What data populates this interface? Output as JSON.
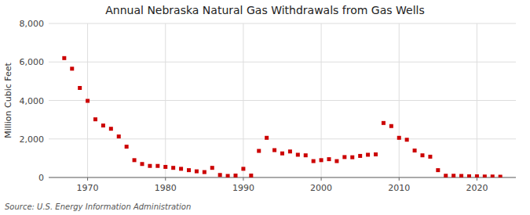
{
  "chart_data": {
    "type": "scatter",
    "title": "Annual Nebraska Natural Gas Withdrawals from Gas Wells",
    "ylabel": "Million Cubic Feet",
    "source": "Source: U.S. Energy Information Administration",
    "color": "#cc0000",
    "marker": "square",
    "grid": true,
    "x": [
      1967,
      1968,
      1969,
      1970,
      1971,
      1972,
      1973,
      1974,
      1975,
      1976,
      1977,
      1978,
      1979,
      1980,
      1981,
      1982,
      1983,
      1984,
      1985,
      1986,
      1987,
      1988,
      1989,
      1990,
      1991,
      1992,
      1993,
      1994,
      1995,
      1996,
      1997,
      1998,
      1999,
      2000,
      2001,
      2002,
      2003,
      2004,
      2005,
      2006,
      2007,
      2008,
      2009,
      2010,
      2011,
      2012,
      2013,
      2014,
      2015,
      2016,
      2017,
      2018,
      2019,
      2020,
      2021,
      2022,
      2023
    ],
    "values": [
      6200,
      5650,
      4650,
      3980,
      3020,
      2700,
      2530,
      2130,
      1600,
      900,
      700,
      600,
      600,
      550,
      500,
      450,
      380,
      320,
      280,
      500,
      130,
      80,
      100,
      450,
      100,
      1380,
      2060,
      1420,
      1250,
      1350,
      1180,
      1150,
      850,
      900,
      950,
      850,
      1060,
      1050,
      1120,
      1180,
      1200,
      2830,
      2670,
      2060,
      1960,
      1400,
      1150,
      1080,
      380,
      90,
      90,
      80,
      60,
      60,
      50,
      50,
      40
    ],
    "xlim": [
      1965,
      2025
    ],
    "xticks": [
      1970,
      1980,
      1990,
      2000,
      2010,
      2020
    ],
    "ylim": [
      0,
      8000
    ],
    "yticks": [
      0,
      {
        "value": 2000,
        "label": "2,000"
      },
      {
        "value": 4000,
        "label": "4,000"
      },
      {
        "value": 6000,
        "label": "6,000"
      },
      {
        "value": 8000,
        "label": "8,000"
      }
    ]
  }
}
